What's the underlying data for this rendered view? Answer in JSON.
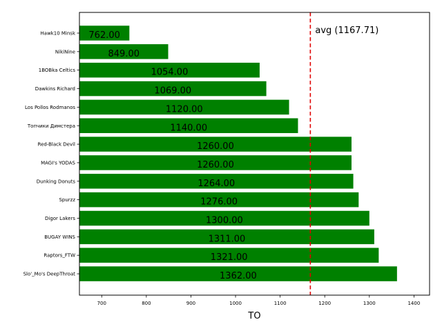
{
  "chart_data": {
    "type": "bar",
    "orientation": "horizontal",
    "categories": [
      "Hawk10 Minsk",
      "NikiNine",
      "1BOBka Celtics",
      "Dawkins Richard",
      "Los Pollos Rodmanos",
      "Топчики Димстера",
      "Red-Black Devil",
      "MAGI's YODAS",
      "Dunking Donuts",
      "Spurzz",
      "Digor Lakers",
      "BUGAY WINS",
      "Raptors_FTW",
      "Slo'_Mo's DeepThroat"
    ],
    "values": [
      762,
      849,
      1054,
      1069,
      1120,
      1140,
      1260,
      1260,
      1264,
      1276,
      1300,
      1311,
      1321,
      1362
    ],
    "value_labels": [
      "762.00",
      "849.00",
      "1054.00",
      "1069.00",
      "1120.00",
      "1140.00",
      "1260.00",
      "1260.00",
      "1264.00",
      "1276.00",
      "1300.00",
      "1311.00",
      "1321.00",
      "1362.00"
    ],
    "xlabel": "TO",
    "ylabel": "",
    "title": "",
    "xlim": [
      650,
      1435
    ],
    "xticks": [
      700,
      800,
      900,
      1000,
      1100,
      1200,
      1300,
      1400
    ],
    "reference_line": {
      "value": 1167.71,
      "label": "avg (1167.71)",
      "style": "dashed",
      "color": "#e00000"
    },
    "bar_color": "#008000",
    "grid": false,
    "legend": "none"
  }
}
